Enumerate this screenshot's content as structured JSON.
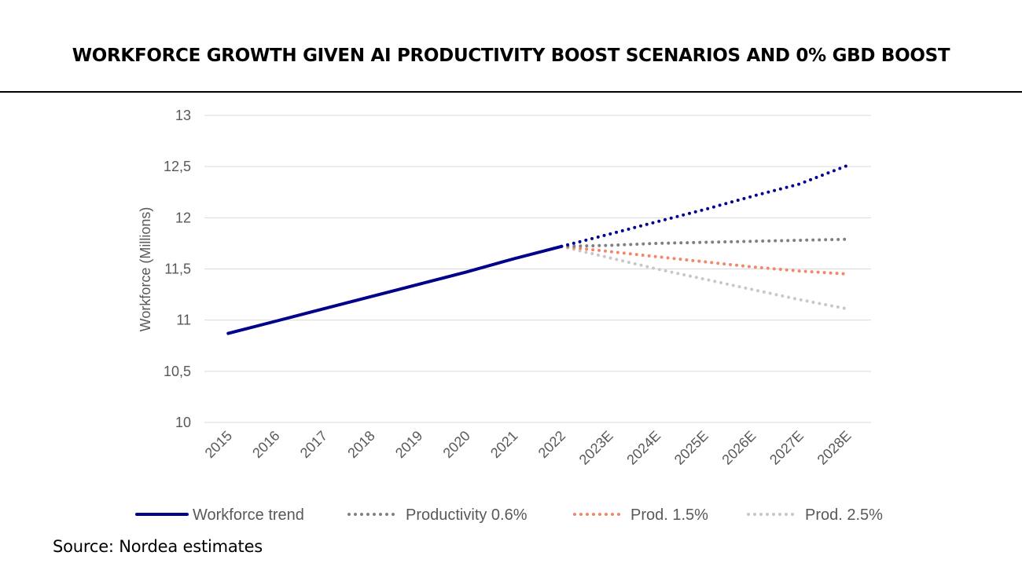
{
  "title": "WORKFORCE GROWTH GIVEN AI PRODUCTIVITY BOOST SCENARIOS AND 0% GBD BOOST",
  "source": "Source: Nordea estimates",
  "chart_data": {
    "type": "line",
    "ylabel": "Workforce (Millions)",
    "xlabel": "",
    "ylim": [
      10,
      13
    ],
    "y_ticks": [
      "10",
      "10,5",
      "11",
      "11,5",
      "12",
      "12,5",
      "13"
    ],
    "y_tick_values": [
      10,
      10.5,
      11,
      11.5,
      12,
      12.5,
      13
    ],
    "categories": [
      "2015",
      "2016",
      "2017",
      "2018",
      "2019",
      "2020",
      "2021",
      "2022",
      "2023E",
      "2024E",
      "2025E",
      "2026E",
      "2027E",
      "2028E"
    ],
    "grid": true,
    "legend_position": "bottom",
    "series": [
      {
        "name": "Workforce trend",
        "color": "#00008B",
        "style": "solid",
        "values": [
          10.87,
          10.99,
          11.11,
          11.23,
          11.35,
          11.47,
          11.6,
          11.72,
          11.84,
          11.96,
          12.08,
          12.21,
          12.33,
          12.51
        ]
      },
      {
        "name": "Productivity 0.6%",
        "color": "#808080",
        "style": "dotted",
        "values": [
          null,
          null,
          null,
          null,
          null,
          null,
          null,
          11.72,
          11.73,
          11.75,
          11.76,
          11.77,
          11.78,
          11.79
        ]
      },
      {
        "name": "Prod. 1.5%",
        "color": "#F4866A",
        "style": "dotted",
        "values": [
          null,
          null,
          null,
          null,
          null,
          null,
          null,
          11.72,
          11.67,
          11.62,
          11.57,
          11.52,
          11.48,
          11.45
        ]
      },
      {
        "name": "Prod. 2.5%",
        "color": "#C8C8C8",
        "style": "dotted",
        "values": [
          null,
          null,
          null,
          null,
          null,
          null,
          null,
          11.72,
          11.61,
          11.5,
          11.4,
          11.3,
          11.2,
          11.11
        ]
      }
    ],
    "trend_projection_from_index": 7
  }
}
